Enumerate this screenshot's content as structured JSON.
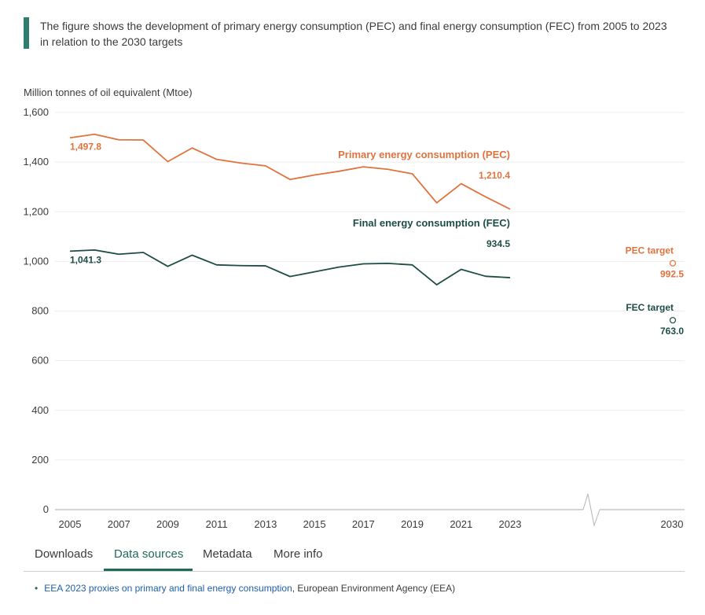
{
  "caption": "The figure shows the development of primary energy consumption (PEC) and final energy consumption (FEC) from 2005 to 2023 in relation to the 2030 targets",
  "colors": {
    "pec": "#e0733d",
    "fec": "#1d4d45",
    "accent": "#2f7d6d"
  },
  "chart_data": {
    "type": "line",
    "ylabel": "Million tonnes of oil equivalent (Mtoe)",
    "ylim": [
      0,
      1600
    ],
    "yticks": [
      0,
      200,
      400,
      600,
      800,
      1000,
      1200,
      1400,
      1600
    ],
    "ytick_labels": [
      "0",
      "200",
      "400",
      "600",
      "800",
      "1,000",
      "1,200",
      "1,400",
      "1,600"
    ],
    "xticks": [
      2005,
      2007,
      2009,
      2011,
      2013,
      2015,
      2017,
      2019,
      2021,
      2023,
      2030
    ],
    "xtick_labels": [
      "2005",
      "2007",
      "2009",
      "2011",
      "2013",
      "2015",
      "2017",
      "2019",
      "2021",
      "2023",
      "2030"
    ],
    "x": [
      2005,
      2006,
      2007,
      2008,
      2009,
      2010,
      2011,
      2012,
      2013,
      2014,
      2015,
      2016,
      2017,
      2018,
      2019,
      2020,
      2021,
      2022,
      2023
    ],
    "axis_break": "between 2023 and 2030",
    "grid": true,
    "series": [
      {
        "name": "Primary energy consumption (PEC)",
        "color": "#e0733d",
        "values": [
          1497.8,
          1512,
          1490,
          1489,
          1402,
          1457,
          1411,
          1396,
          1385,
          1330,
          1348,
          1363,
          1381,
          1371,
          1353,
          1236,
          1313,
          1260,
          1210.4
        ],
        "first_label": "1,497.8",
        "last_label": "1,210.4"
      },
      {
        "name": "Final energy consumption (FEC)",
        "color": "#1d4d45",
        "values": [
          1041.3,
          1046,
          1029,
          1036,
          980,
          1025,
          986,
          983,
          982,
          939,
          958,
          977,
          990,
          992,
          986,
          906,
          968,
          940,
          934.5
        ],
        "first_label": "1,041.3",
        "last_label": "934.5"
      }
    ],
    "targets": [
      {
        "name": "PEC target",
        "x": 2030,
        "value": 992.5,
        "label": "992.5",
        "color": "#e0733d"
      },
      {
        "name": "FEC target",
        "x": 2030,
        "value": 763.0,
        "label": "763.0",
        "color": "#1d4d45"
      }
    ]
  },
  "tabs": [
    {
      "label": "Downloads",
      "active": false
    },
    {
      "label": "Data sources",
      "active": true
    },
    {
      "label": "Metadata",
      "active": false
    },
    {
      "label": "More info",
      "active": false
    }
  ],
  "source": {
    "bullet": "•",
    "link_text": "EEA 2023 proxies on primary and final energy consumption",
    "suffix": ", European Environment Agency (EEA)"
  }
}
